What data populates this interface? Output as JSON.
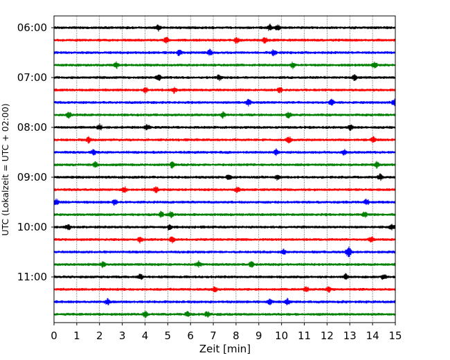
{
  "chart_data": {
    "type": "line",
    "title": "",
    "xlabel": "Zeit  [min]",
    "ylabel": "UTC (Lokalzeit = UTC + 02:00)",
    "xlim": [
      0,
      15
    ],
    "x_ticks": [
      "0",
      "1",
      "2",
      "3",
      "4",
      "5",
      "6",
      "7",
      "8",
      "9",
      "10",
      "11",
      "12",
      "13",
      "14",
      "15"
    ],
    "y_tick_labels": [
      "06:00",
      "07:00",
      "08:00",
      "09:00",
      "10:00",
      "11:00"
    ],
    "grid": "vertical dotted at each minute",
    "trace_colors": [
      "#000000",
      "#ff0000",
      "#0000ff",
      "#008000"
    ],
    "traces": [
      {
        "start": "06:00",
        "color": "#000000"
      },
      {
        "start": "06:15",
        "color": "#ff0000"
      },
      {
        "start": "06:30",
        "color": "#0000ff"
      },
      {
        "start": "06:45",
        "color": "#008000"
      },
      {
        "start": "07:00",
        "color": "#000000"
      },
      {
        "start": "07:15",
        "color": "#ff0000"
      },
      {
        "start": "07:30",
        "color": "#0000ff"
      },
      {
        "start": "07:45",
        "color": "#008000"
      },
      {
        "start": "08:00",
        "color": "#000000"
      },
      {
        "start": "08:15",
        "color": "#ff0000"
      },
      {
        "start": "08:30",
        "color": "#0000ff"
      },
      {
        "start": "08:45",
        "color": "#008000"
      },
      {
        "start": "09:00",
        "color": "#000000"
      },
      {
        "start": "09:15",
        "color": "#ff0000"
      },
      {
        "start": "09:30",
        "color": "#0000ff"
      },
      {
        "start": "09:45",
        "color": "#008000"
      },
      {
        "start": "10:00",
        "color": "#000000"
      },
      {
        "start": "10:15",
        "color": "#ff0000"
      },
      {
        "start": "10:30",
        "color": "#0000ff"
      },
      {
        "start": "10:45",
        "color": "#008000"
      },
      {
        "start": "11:00",
        "color": "#000000"
      },
      {
        "start": "11:15",
        "color": "#ff0000"
      },
      {
        "start": "11:30",
        "color": "#0000ff"
      },
      {
        "start": "11:45",
        "color": "#008000"
      }
    ]
  }
}
